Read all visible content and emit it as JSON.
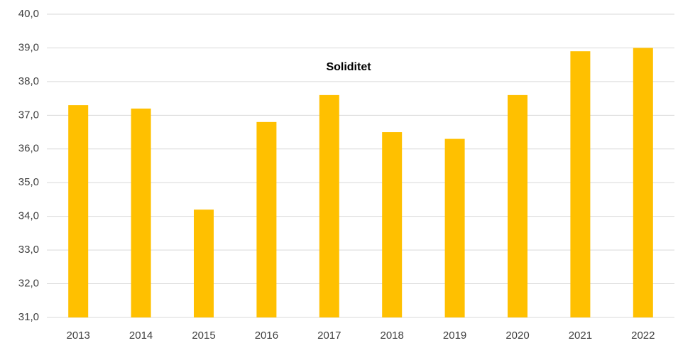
{
  "chart_data": {
    "type": "bar",
    "title": "Soliditet",
    "categories": [
      "2013",
      "2014",
      "2015",
      "2016",
      "2017",
      "2018",
      "2019",
      "2020",
      "2021",
      "2022"
    ],
    "values": [
      37.3,
      37.2,
      34.2,
      36.8,
      37.6,
      36.5,
      36.3,
      37.6,
      38.9,
      39.0
    ],
    "color": "#ffc000",
    "ylim": [
      31,
      40
    ],
    "yticks": [
      {
        "value": 31,
        "label": "31,0"
      },
      {
        "value": 32,
        "label": "32,0"
      },
      {
        "value": 33,
        "label": "33,0"
      },
      {
        "value": 34,
        "label": "34,0"
      },
      {
        "value": 35,
        "label": "35,0"
      },
      {
        "value": 36,
        "label": "36,0"
      },
      {
        "value": 37,
        "label": "37,0"
      },
      {
        "value": 38,
        "label": "38,0"
      },
      {
        "value": 39,
        "label": "39,0"
      },
      {
        "value": 40,
        "label": "40,0"
      }
    ],
    "grid": true
  }
}
